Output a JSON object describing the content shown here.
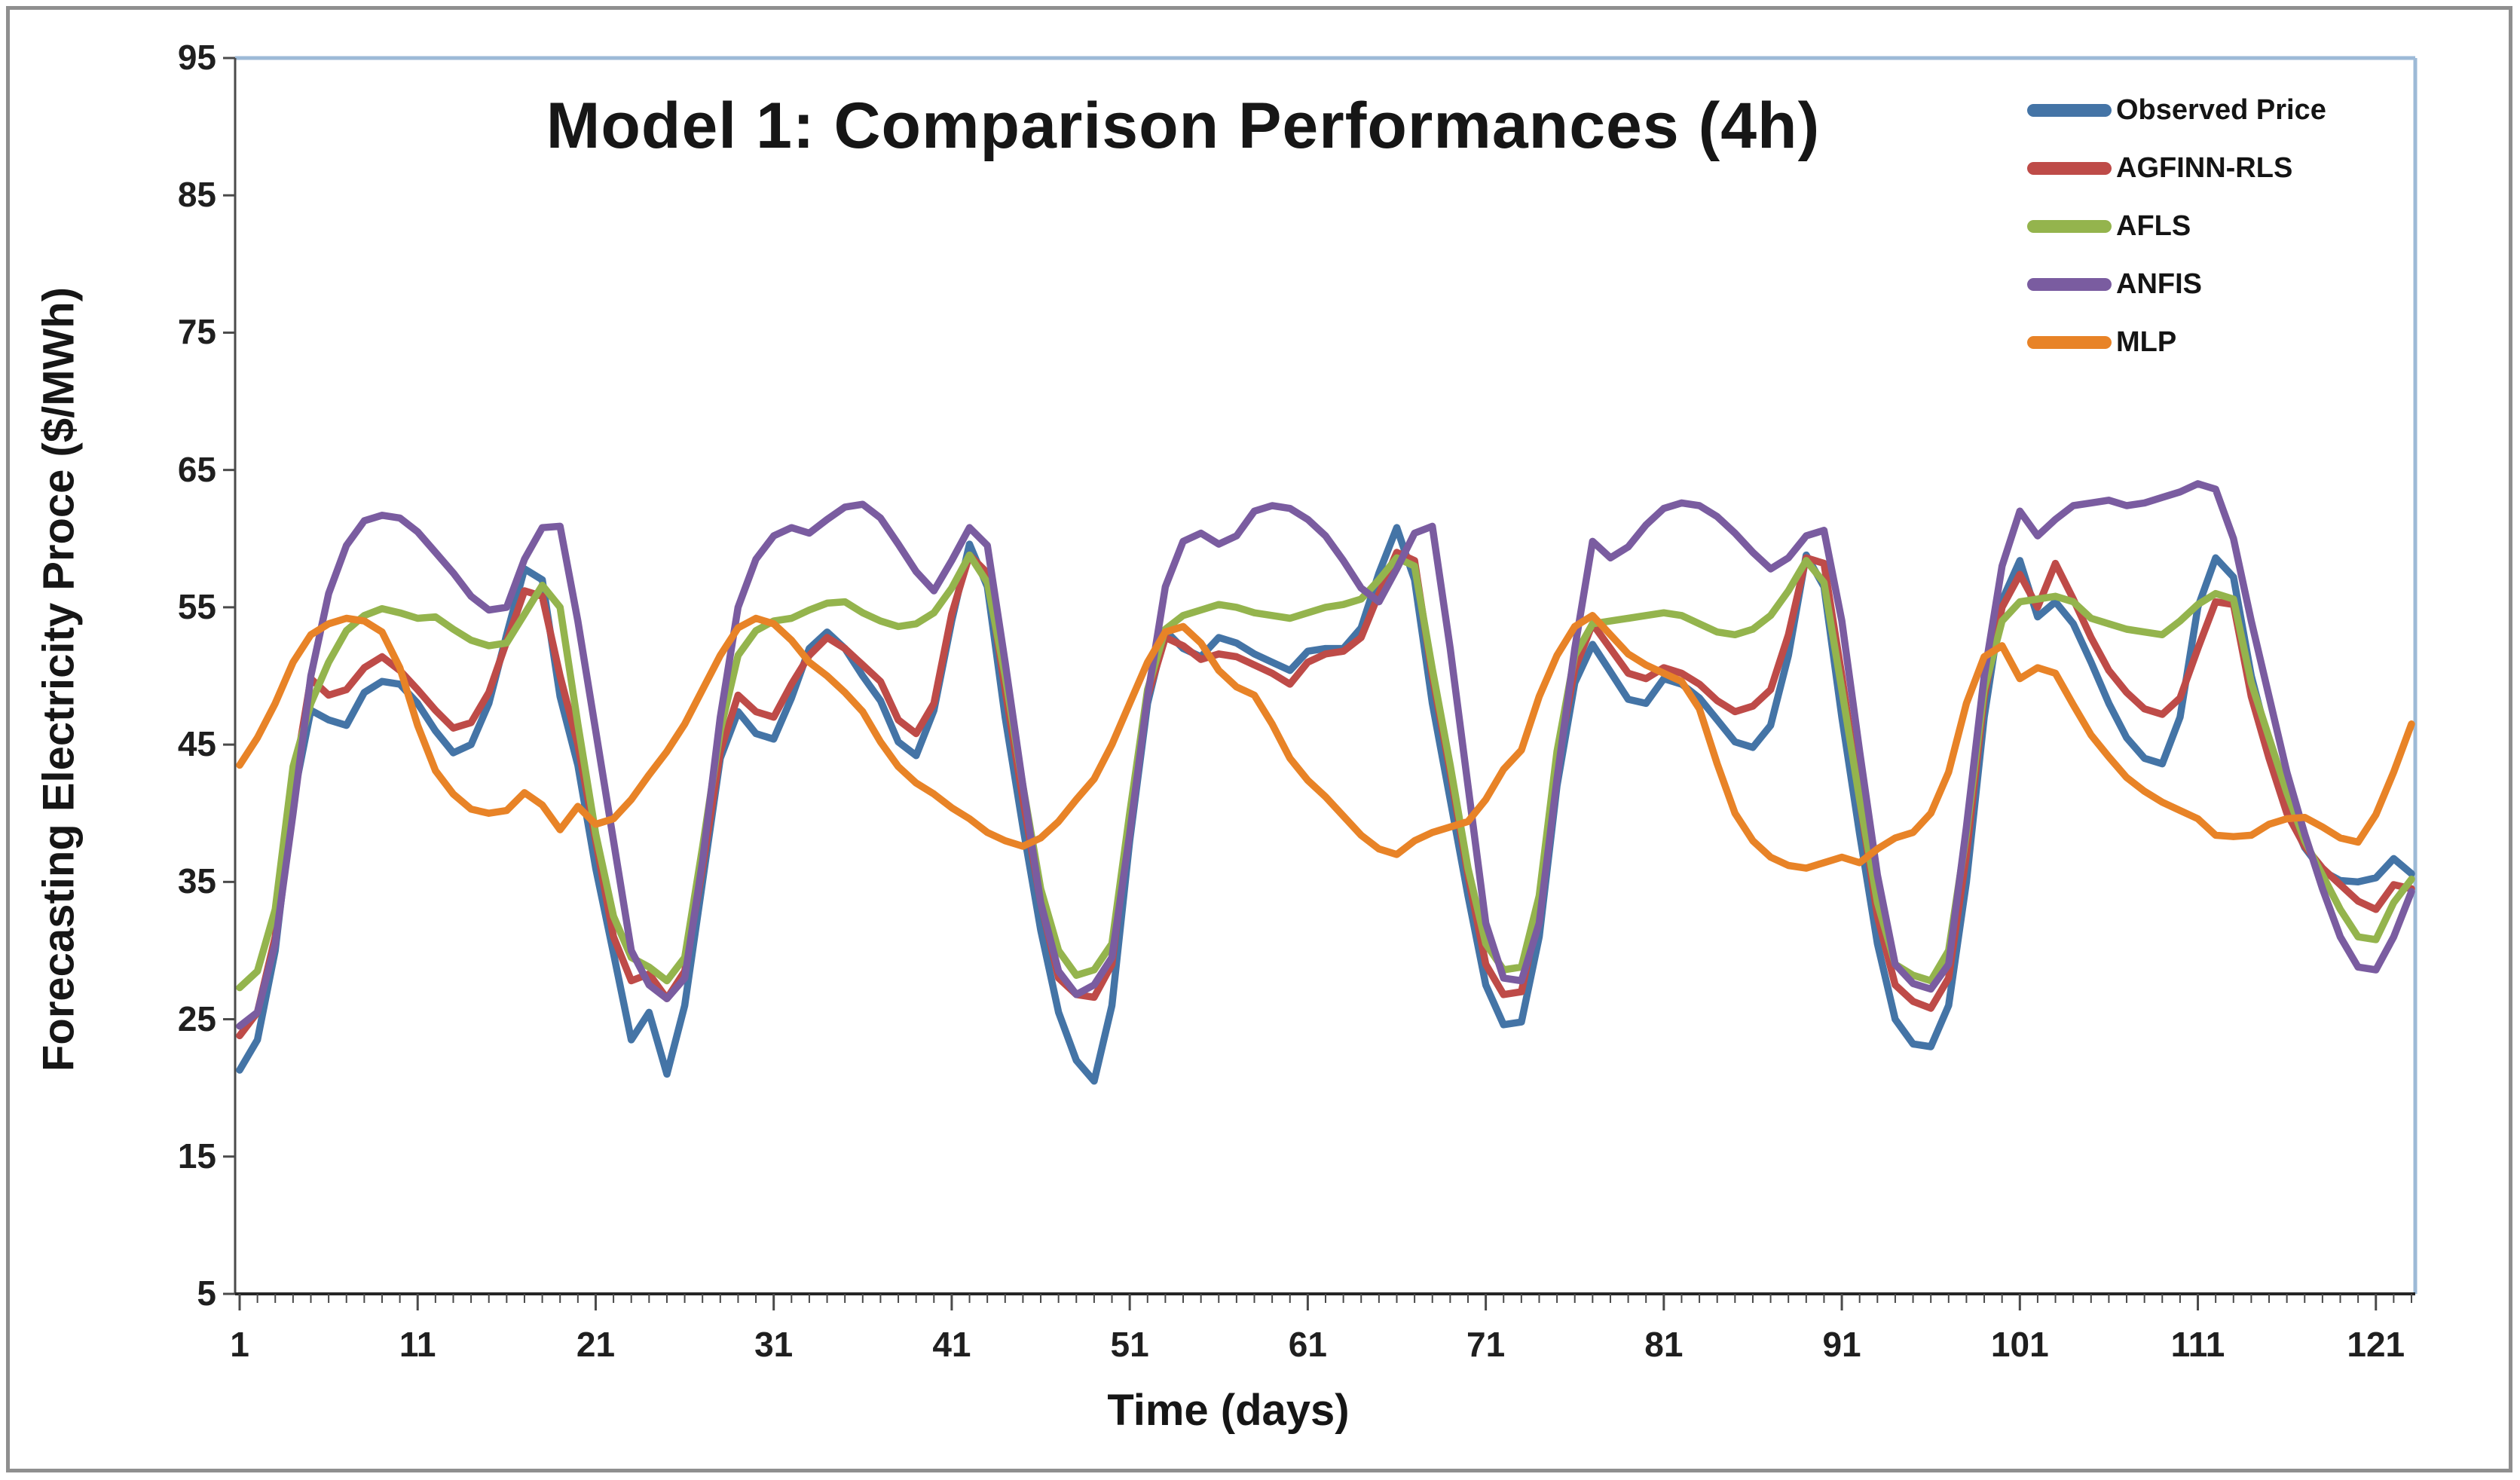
{
  "figure": {
    "title": "Model 1: Comparison Performances (4h)",
    "x_axis_title": "Time (days)",
    "y_axis_title": "Forecasting Electricity Proce ($/MWh)",
    "border_color_outer": "#8f8f8f",
    "plot_border_color": "#9dbad7",
    "axis_color": "#4a4a4a",
    "text_color": "#1f1f1f"
  },
  "chart_data": {
    "type": "line",
    "title": "Model 1: Comparison Performances (4h)",
    "xlabel": "Time (days)",
    "ylabel": "Forecasting Electricity Proce ($/MWh)",
    "x_start": 1,
    "x_step": 1,
    "n_points": 123,
    "xlim": [
      1,
      123
    ],
    "ylim": [
      5,
      95
    ],
    "x_tick_values": [
      1,
      11,
      21,
      31,
      41,
      51,
      61,
      71,
      81,
      91,
      101,
      111,
      121
    ],
    "y_tick_values": [
      5,
      15,
      25,
      35,
      45,
      55,
      65,
      75,
      85,
      95
    ],
    "grid": false,
    "legend_position": "top-right-inside",
    "series": [
      {
        "name": "Observed Price",
        "color": "#4474a6",
        "values": [
          21.3,
          23.5,
          30,
          41,
          47.5,
          46.8,
          46.4,
          48.8,
          49.6,
          49.4,
          48,
          46,
          44.4,
          45,
          48,
          53,
          57.8,
          57,
          48.5,
          43.5,
          36,
          29.8,
          23.5,
          25.5,
          21,
          26,
          35,
          44,
          47.4,
          45.8,
          45.4,
          48.4,
          52,
          53.2,
          52,
          50,
          48.2,
          45.2,
          44.2,
          47.5,
          54,
          59.6,
          56.5,
          47,
          39,
          31.5,
          25.5,
          22,
          20.5,
          26,
          38,
          48,
          53.3,
          52,
          51.4,
          52.8,
          52.4,
          51.6,
          51,
          50.4,
          51.8,
          52,
          52,
          53.5,
          57.5,
          60.8,
          57,
          48,
          41,
          34,
          27.5,
          24.6,
          24.8,
          31,
          42,
          49.5,
          52.3,
          50.3,
          48.3,
          48,
          49.8,
          49.4,
          48.4,
          46.8,
          45.2,
          44.8,
          46.4,
          51.5,
          58.8,
          56.5,
          47,
          38.5,
          30.5,
          25,
          23.2,
          23,
          26,
          35,
          47,
          55.5,
          58.4,
          54.3,
          55.4,
          53.8,
          51,
          48,
          45.5,
          44,
          43.6,
          47,
          55,
          58.6,
          57.2,
          50,
          45,
          40.5,
          37.5,
          35.8,
          35.1,
          35,
          35.3,
          36.7,
          35.6
        ]
      },
      {
        "name": "AGFINN-RLS",
        "color": "#be4b48",
        "values": [
          23.8,
          25.5,
          31,
          42,
          49.8,
          48.6,
          49,
          50.6,
          51.4,
          50.4,
          49,
          47.5,
          46.2,
          46.6,
          48.8,
          52.5,
          56.2,
          55.8,
          50,
          45,
          38,
          31,
          27.8,
          28.3,
          26.5,
          28.5,
          36,
          44.5,
          48.6,
          47.4,
          47,
          49.4,
          51.5,
          52.8,
          52,
          50.8,
          49.6,
          46.8,
          45.8,
          48,
          54.5,
          58.8,
          57.5,
          49,
          41,
          33.5,
          28,
          26.8,
          26.6,
          29,
          39.5,
          48.5,
          52.8,
          52.2,
          51.2,
          51.6,
          51.4,
          50.8,
          50.2,
          49.4,
          51,
          51.6,
          51.8,
          52.8,
          56,
          59,
          58.4,
          50,
          43,
          35.5,
          29,
          26.8,
          27,
          33,
          43.5,
          50.5,
          53.8,
          52,
          50.2,
          49.8,
          50.6,
          50.2,
          49.4,
          48.2,
          47.4,
          47.8,
          49,
          53,
          58.6,
          58.2,
          50,
          41,
          32.5,
          27.5,
          26.3,
          25.8,
          28,
          37,
          48.5,
          55,
          57.4,
          55,
          58.2,
          55.6,
          52.8,
          50.4,
          48.8,
          47.6,
          47.2,
          48.4,
          52,
          55.4,
          55.2,
          48.5,
          44,
          40,
          37.6,
          36,
          34.8,
          33.6,
          33,
          34.8,
          34.5
        ]
      },
      {
        "name": "AFLS",
        "color": "#94b44d",
        "values": [
          27.3,
          28.5,
          33,
          43.4,
          48,
          51,
          53.3,
          54.4,
          54.9,
          54.6,
          54.2,
          54.3,
          53.4,
          52.6,
          52.2,
          52.4,
          54.5,
          56.6,
          55,
          46.5,
          38.5,
          32.5,
          29.5,
          28.8,
          27.8,
          29.5,
          37.5,
          46,
          51.5,
          53.3,
          54,
          54.2,
          54.8,
          55.3,
          55.4,
          54.6,
          54,
          53.6,
          53.8,
          54.6,
          56.4,
          58.8,
          56.8,
          50,
          42,
          34.5,
          30,
          28.2,
          28.6,
          30.5,
          40,
          49,
          53.4,
          54.4,
          54.8,
          55.2,
          55,
          54.6,
          54.4,
          54.2,
          54.6,
          55,
          55.2,
          55.6,
          57,
          58.6,
          58,
          50.5,
          43.5,
          36,
          30.5,
          28.6,
          28.8,
          34,
          44.5,
          51.5,
          53.8,
          54,
          54.2,
          54.4,
          54.6,
          54.4,
          53.8,
          53.2,
          53,
          53.4,
          54.4,
          56.2,
          58.4,
          56.8,
          49,
          41,
          33.5,
          29,
          28.2,
          27.8,
          30,
          38.5,
          49,
          54,
          55.4,
          55.6,
          55.8,
          55.4,
          54.2,
          53.8,
          53.4,
          53.2,
          53,
          54,
          55.2,
          56,
          55.6,
          49.5,
          45.5,
          41.5,
          38,
          35.5,
          33,
          31,
          30.8,
          33.5,
          35.2
        ]
      },
      {
        "name": "ANFIS",
        "color": "#7a5ca0",
        "values": [
          24.5,
          25.5,
          30.5,
          40,
          50,
          56,
          59.5,
          61.3,
          61.7,
          61.5,
          60.5,
          59,
          57.5,
          55.8,
          54.8,
          55,
          58.5,
          60.8,
          60.9,
          54,
          46,
          38,
          30,
          27.5,
          26.5,
          28,
          36.5,
          47,
          55,
          58.5,
          60.2,
          60.8,
          60.4,
          61.4,
          62.3,
          62.5,
          61.5,
          59.6,
          57.6,
          56.2,
          58.4,
          60.8,
          59.5,
          51,
          42,
          33.5,
          28.5,
          26.8,
          27.5,
          29.5,
          38.5,
          48.5,
          56.5,
          59.8,
          60.4,
          59.6,
          60.2,
          62,
          62.4,
          62.2,
          61.4,
          60.2,
          58.4,
          56.4,
          55.4,
          57.8,
          60.4,
          60.9,
          52,
          42,
          32,
          28,
          27.8,
          32,
          42.5,
          52,
          59.8,
          58.6,
          59.4,
          61,
          62.2,
          62.6,
          62.4,
          61.6,
          60.4,
          59,
          57.8,
          58.6,
          60.2,
          60.6,
          54,
          44.5,
          35.5,
          29,
          27.6,
          27.2,
          29,
          39,
          50,
          58,
          62,
          60.2,
          61.4,
          62.4,
          62.6,
          62.8,
          62.4,
          62.6,
          63,
          63.4,
          64,
          63.6,
          60,
          54,
          48.5,
          43,
          38.5,
          34.5,
          31,
          28.8,
          28.6,
          31,
          34.3
        ]
      },
      {
        "name": "MLP",
        "color": "#e88327",
        "values": [
          43.5,
          45.5,
          48,
          51,
          53,
          53.8,
          54.2,
          54,
          53.2,
          50.6,
          46.4,
          43.1,
          41.4,
          40.3,
          40,
          40.2,
          41.5,
          40.6,
          38.8,
          40.5,
          39.2,
          39.6,
          41,
          42.8,
          44.5,
          46.5,
          49,
          51.5,
          53.5,
          54.2,
          53.8,
          52.6,
          51,
          50,
          48.8,
          47.4,
          45.2,
          43.4,
          42.2,
          41.4,
          40.4,
          39.6,
          38.6,
          38,
          37.6,
          38.2,
          39.4,
          41,
          42.5,
          45,
          48,
          51,
          53.2,
          53.6,
          52.4,
          50.4,
          49.2,
          48.6,
          46.5,
          44,
          42.4,
          41.2,
          39.8,
          38.4,
          37.4,
          37,
          38,
          38.6,
          39,
          39.4,
          41,
          43.2,
          44.6,
          48.5,
          51.5,
          53.6,
          54.4,
          53,
          51.6,
          50.8,
          50.2,
          49.6,
          47.6,
          43.6,
          40,
          38,
          36.8,
          36.2,
          36,
          36.4,
          36.8,
          36.4,
          37.4,
          38.2,
          38.6,
          40,
          43,
          48,
          51.4,
          52.2,
          49.8,
          50.6,
          50.2,
          47.9,
          45.7,
          44.1,
          42.6,
          41.6,
          40.8,
          40.2,
          39.6,
          38.4,
          38.3,
          38.4,
          39.2,
          39.6,
          39.7,
          39,
          38.2,
          37.9,
          39.9,
          43,
          46.5
        ]
      }
    ]
  }
}
